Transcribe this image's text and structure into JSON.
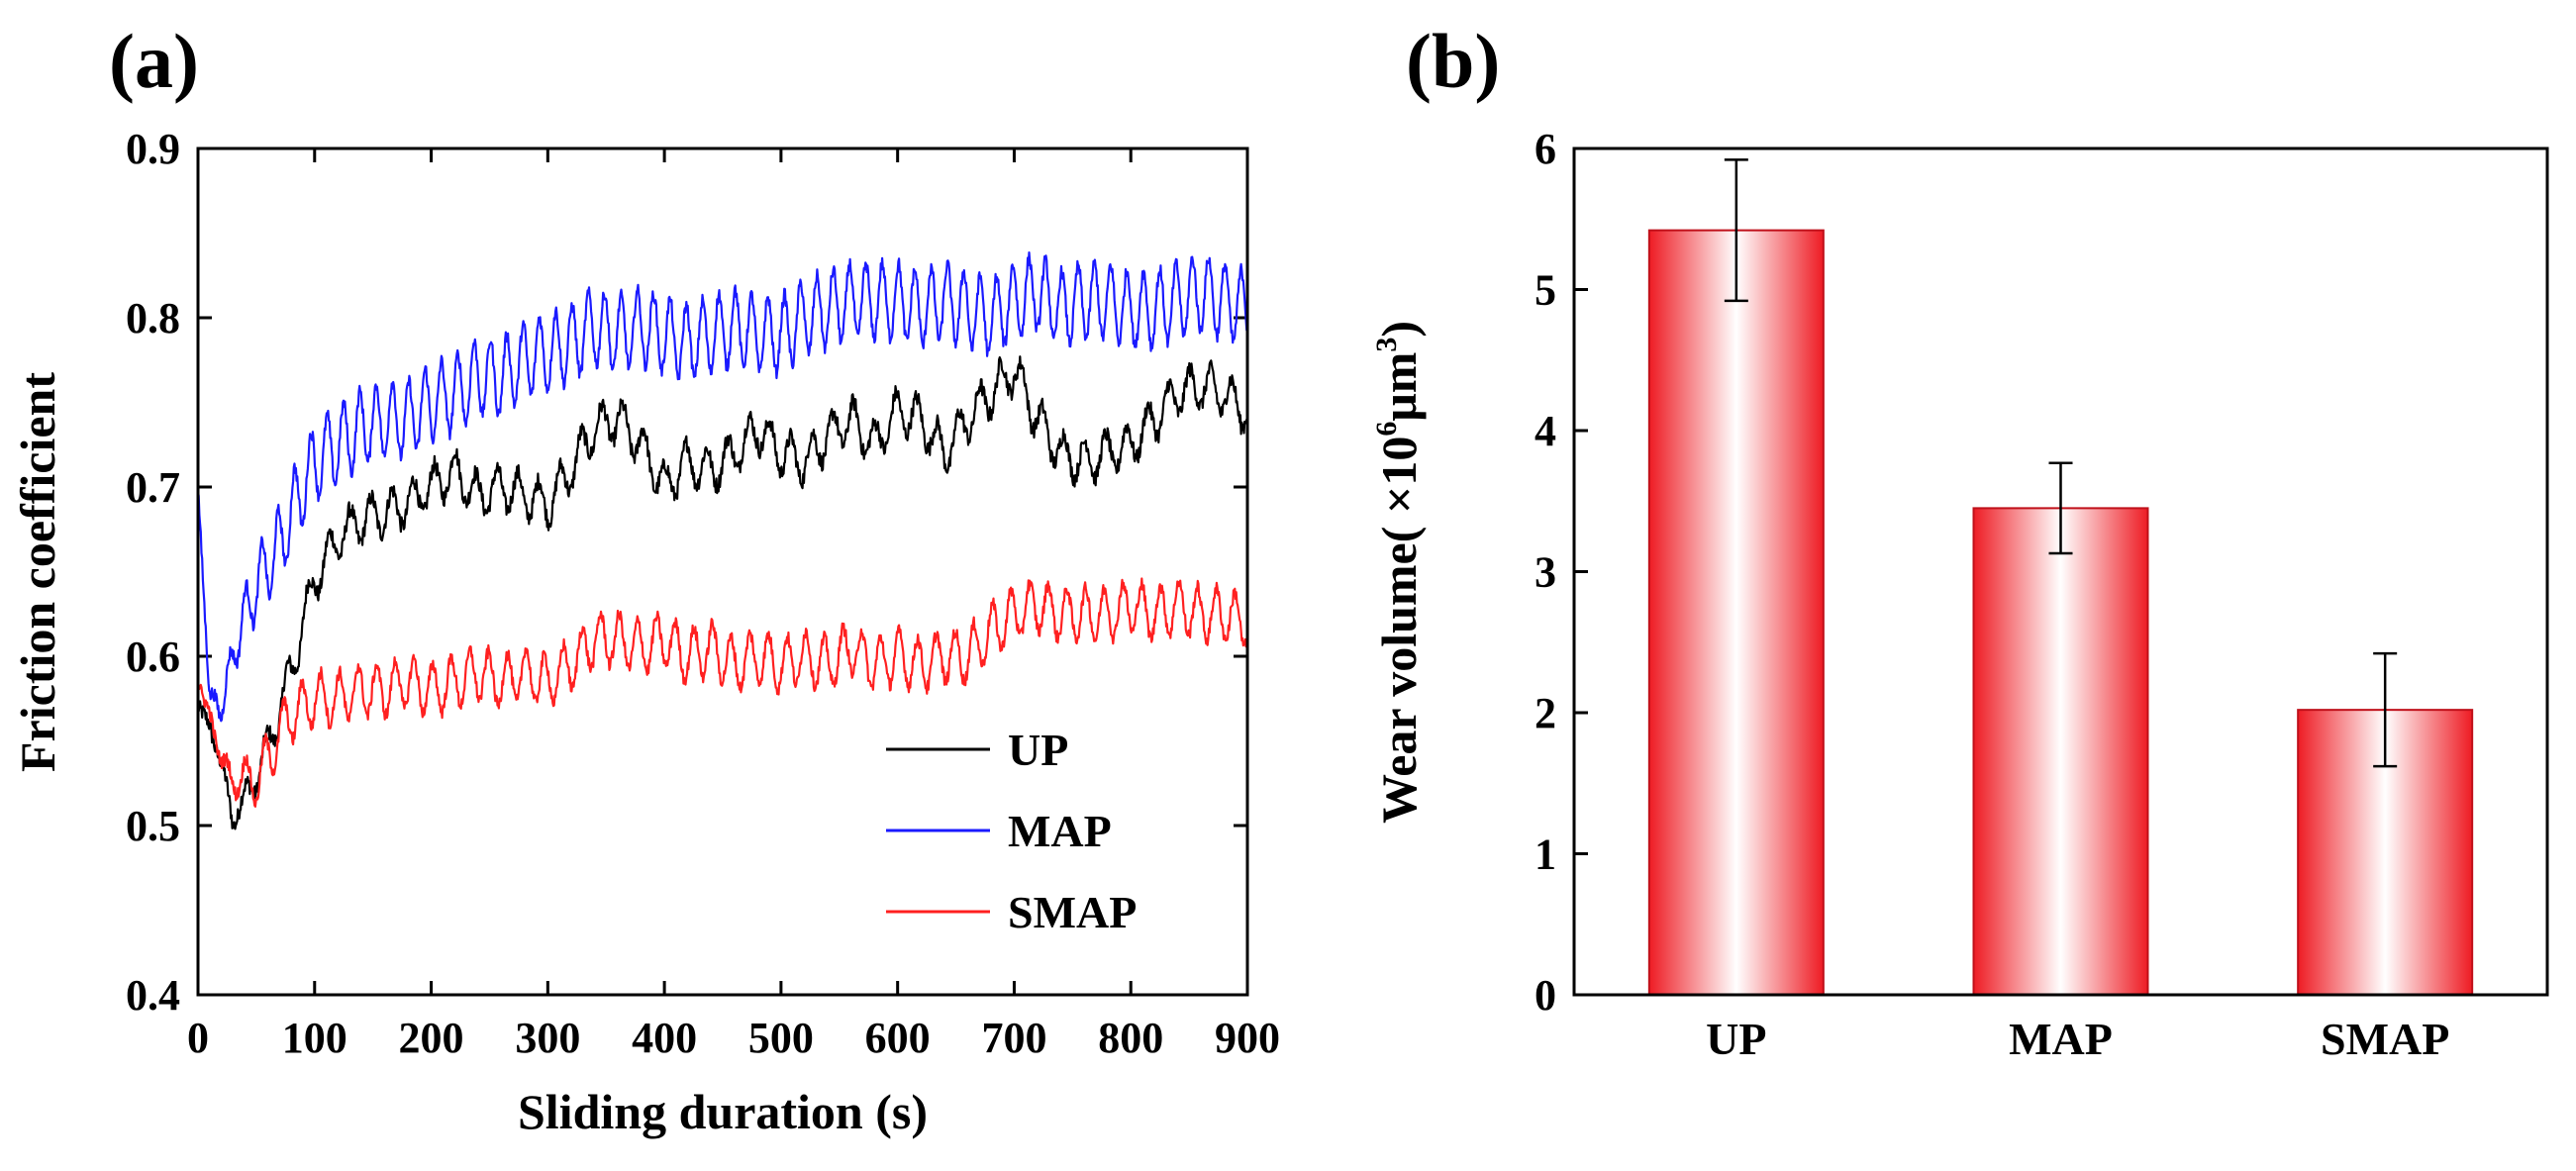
{
  "chart_data": [
    {
      "panel": "(a)",
      "type": "line",
      "title": "",
      "xlabel": "Sliding duration (s)",
      "ylabel": "Friction coefficient",
      "xlim": [
        0,
        900
      ],
      "ylim": [
        0.4,
        0.9
      ],
      "xticks": [
        0,
        100,
        200,
        300,
        400,
        500,
        600,
        700,
        800,
        900
      ],
      "yticks": [
        0.4,
        0.5,
        0.6,
        0.7,
        0.8,
        0.9
      ],
      "legend": "lower-right",
      "series": [
        {
          "name": "UP",
          "color": "#000000",
          "noise": 0.005,
          "amplitude": 0.012,
          "period": 18,
          "x": [
            0,
            10,
            20,
            30,
            40,
            50,
            60,
            70,
            80,
            90,
            100,
            120,
            140,
            160,
            180,
            200,
            220,
            240,
            260,
            280,
            300,
            320,
            340,
            360,
            380,
            400,
            420,
            440,
            460,
            480,
            500,
            520,
            540,
            560,
            580,
            600,
            620,
            640,
            660,
            680,
            700,
            720,
            740,
            760,
            780,
            800,
            820,
            840,
            860,
            880,
            900
          ],
          "y": [
            0.57,
            0.56,
            0.535,
            0.505,
            0.515,
            0.53,
            0.545,
            0.57,
            0.59,
            0.62,
            0.645,
            0.67,
            0.68,
            0.685,
            0.69,
            0.7,
            0.71,
            0.695,
            0.7,
            0.695,
            0.69,
            0.71,
            0.735,
            0.74,
            0.725,
            0.7,
            0.715,
            0.71,
            0.72,
            0.735,
            0.72,
            0.715,
            0.73,
            0.74,
            0.725,
            0.745,
            0.74,
            0.72,
            0.74,
            0.755,
            0.77,
            0.74,
            0.72,
            0.715,
            0.72,
            0.725,
            0.74,
            0.755,
            0.76,
            0.755,
            0.745
          ]
        },
        {
          "name": "MAP",
          "color": "#1a1aff",
          "noise": 0.004,
          "amplitude": 0.022,
          "period": 14,
          "x": [
            0,
            10,
            20,
            30,
            40,
            50,
            60,
            70,
            80,
            90,
            100,
            120,
            140,
            160,
            180,
            200,
            220,
            240,
            260,
            280,
            300,
            320,
            340,
            360,
            380,
            400,
            420,
            440,
            460,
            480,
            500,
            520,
            540,
            560,
            580,
            600,
            620,
            640,
            660,
            680,
            700,
            720,
            740,
            760,
            780,
            800,
            820,
            840,
            860,
            880,
            900
          ],
          "y": [
            0.7,
            0.575,
            0.57,
            0.6,
            0.625,
            0.64,
            0.655,
            0.665,
            0.685,
            0.7,
            0.715,
            0.725,
            0.735,
            0.74,
            0.74,
            0.75,
            0.755,
            0.765,
            0.765,
            0.775,
            0.78,
            0.785,
            0.795,
            0.79,
            0.795,
            0.79,
            0.785,
            0.79,
            0.795,
            0.79,
            0.79,
            0.8,
            0.805,
            0.81,
            0.81,
            0.81,
            0.805,
            0.81,
            0.805,
            0.8,
            0.81,
            0.815,
            0.805,
            0.81,
            0.81,
            0.805,
            0.805,
            0.81,
            0.815,
            0.81,
            0.805
          ]
        },
        {
          "name": "SMAP",
          "color": "#ff2020",
          "noise": 0.004,
          "amplitude": 0.015,
          "period": 16,
          "x": [
            0,
            10,
            20,
            30,
            40,
            50,
            60,
            70,
            80,
            90,
            100,
            120,
            140,
            160,
            180,
            200,
            220,
            240,
            260,
            280,
            300,
            320,
            340,
            360,
            380,
            400,
            420,
            440,
            460,
            480,
            500,
            520,
            540,
            560,
            580,
            600,
            620,
            640,
            660,
            680,
            700,
            720,
            740,
            760,
            780,
            800,
            820,
            840,
            860,
            880,
            900
          ],
          "y": [
            0.585,
            0.565,
            0.54,
            0.525,
            0.53,
            0.525,
            0.54,
            0.555,
            0.565,
            0.57,
            0.575,
            0.575,
            0.58,
            0.58,
            0.585,
            0.58,
            0.585,
            0.59,
            0.585,
            0.59,
            0.585,
            0.595,
            0.61,
            0.61,
            0.605,
            0.61,
            0.6,
            0.605,
            0.595,
            0.6,
            0.595,
            0.6,
            0.595,
            0.605,
            0.595,
            0.6,
            0.595,
            0.6,
            0.6,
            0.615,
            0.625,
            0.63,
            0.625,
            0.625,
            0.625,
            0.63,
            0.625,
            0.63,
            0.625,
            0.625,
            0.62
          ]
        }
      ]
    },
    {
      "panel": "(b)",
      "type": "bar",
      "title": "",
      "xlabel": "",
      "ylabel": "Wear volume( ×10⁶μm³)",
      "ylabel_parts": {
        "prefix": "Wear volume( ×10",
        "exp1": "6",
        "mid": "μm",
        "exp2": "3",
        "suffix": ")"
      },
      "ylim": [
        0,
        6
      ],
      "yticks": [
        0,
        1,
        2,
        3,
        4,
        5,
        6
      ],
      "categories": [
        "UP",
        "MAP",
        "SMAP"
      ],
      "values": [
        5.42,
        3.45,
        2.02
      ],
      "errors": [
        0.5,
        0.32,
        0.4
      ],
      "bar_color": "#ee1c24"
    }
  ]
}
